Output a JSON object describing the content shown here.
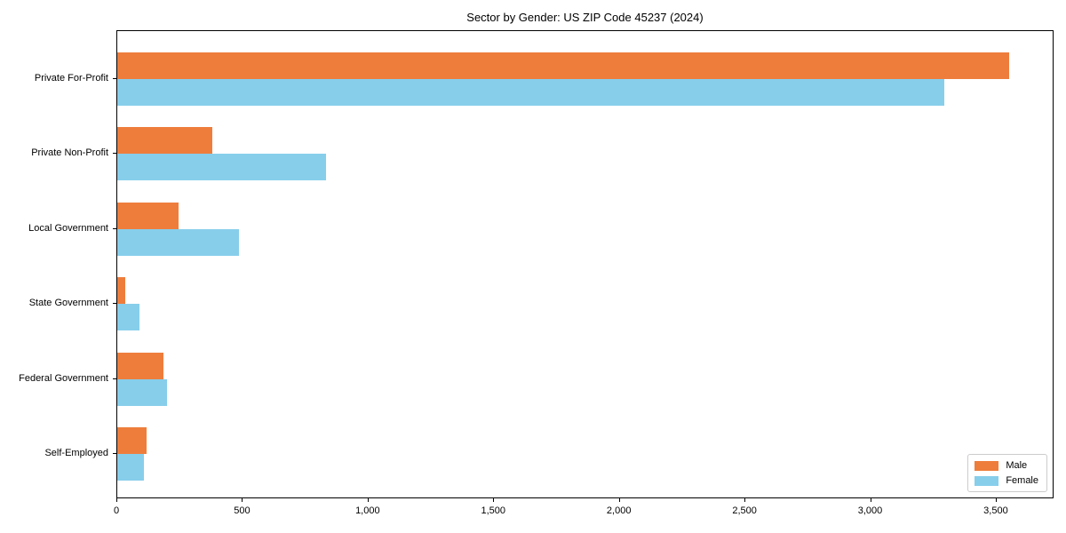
{
  "chart_data": {
    "type": "bar",
    "orientation": "horizontal",
    "title": "Sector by Gender: US ZIP Code 45237 (2024)",
    "categories": [
      "Private For-Profit",
      "Private Non-Profit",
      "Local Government",
      "State Government",
      "Federal Government",
      "Self-Employed"
    ],
    "series": [
      {
        "name": "Male",
        "color": "#ee7d3c",
        "values": [
          3550,
          380,
          245,
          32,
          185,
          117
        ]
      },
      {
        "name": "Female",
        "color": "#87ceeb",
        "values": [
          3290,
          830,
          485,
          88,
          198,
          106
        ]
      }
    ],
    "xlabel": "",
    "ylabel": "",
    "xlim": [
      0,
      3730
    ],
    "xticks": [
      0,
      500,
      1000,
      1500,
      2000,
      2500,
      3000,
      3500
    ],
    "xtick_labels": [
      "0",
      "500",
      "1,000",
      "1,500",
      "2,000",
      "2,500",
      "3,000",
      "3,500"
    ],
    "grid": false,
    "legend": {
      "position": "lower right"
    }
  }
}
